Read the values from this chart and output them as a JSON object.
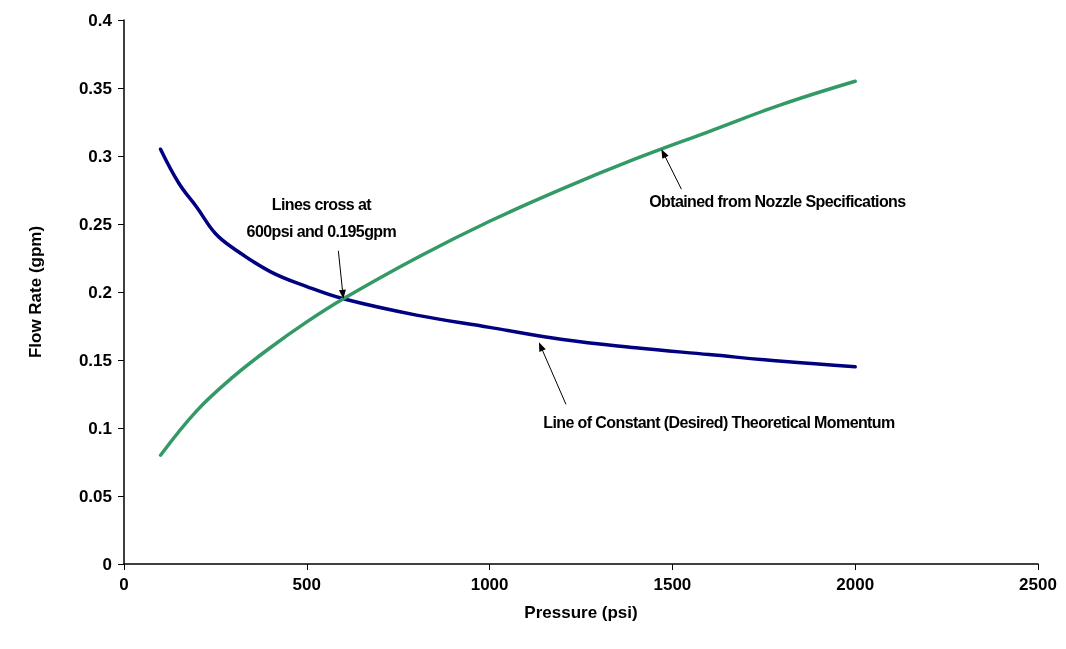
{
  "chart_data": {
    "type": "line",
    "xlabel": "Pressure (psi)",
    "ylabel": "Flow Rate (gpm)",
    "xlim": [
      0,
      2500
    ],
    "xticks": [
      0,
      500,
      1000,
      1500,
      2000,
      2500
    ],
    "ylim": [
      0,
      0.4
    ],
    "yticks": [
      0,
      0.05,
      0.1,
      0.15,
      0.2,
      0.25,
      0.3,
      0.35,
      0.4
    ],
    "grid": false,
    "marker": "none",
    "line_style": "solid",
    "series": [
      {
        "color": "#000080",
        "x": [
          100,
          150,
          200,
          250,
          300,
          400,
          500,
          600,
          800,
          1000,
          1200,
          1400,
          1600,
          1800,
          2000
        ],
        "values": [
          0.305,
          0.28,
          0.262,
          0.243,
          0.232,
          0.215,
          0.204,
          0.195,
          0.183,
          0.174,
          0.165,
          0.159,
          0.154,
          0.149,
          0.145
        ]
      },
      {
        "color": "#339966",
        "x": [
          100,
          200,
          300,
          400,
          500,
          600,
          800,
          1000,
          1200,
          1400,
          1600,
          1800,
          2000
        ],
        "values": [
          0.08,
          0.113,
          0.138,
          0.159,
          0.178,
          0.195,
          0.225,
          0.252,
          0.276,
          0.298,
          0.318,
          0.338,
          0.355
        ]
      }
    ],
    "annotations": [
      {
        "text": "Lines cross at 600psi and 0.195gpm",
        "x": 600,
        "y": 0.195
      },
      {
        "text": "Obtained from Nozzle Specifications",
        "x": 1470,
        "y": 0.305
      },
      {
        "text": "Line of Constant (Desired) Theoretical Momentum",
        "x": 1135,
        "y": 0.163
      }
    ]
  }
}
